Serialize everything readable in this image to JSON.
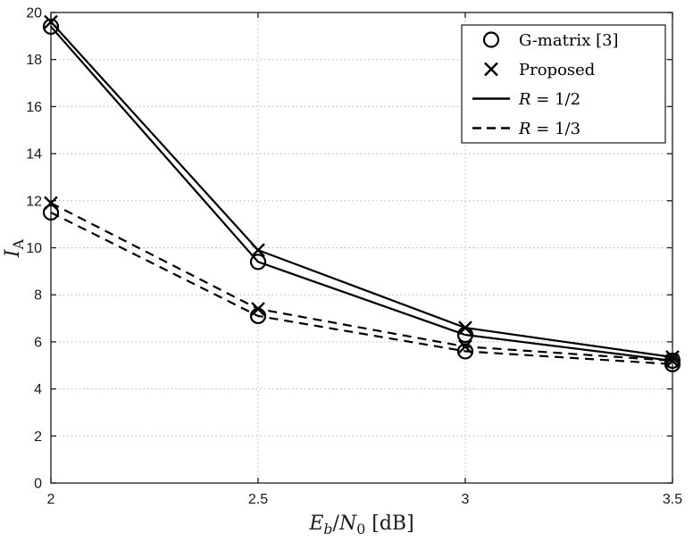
{
  "chart_data": {
    "type": "line",
    "x": [
      2,
      2.5,
      3,
      3.5
    ],
    "series": [
      {
        "id": "g-matrix-r12",
        "name": "G-matrix [3], R = 1/2",
        "marker": "circle",
        "line": "solid",
        "values": [
          19.4,
          9.4,
          6.3,
          5.2
        ]
      },
      {
        "id": "proposed-r12",
        "name": "Proposed, R = 1/2",
        "marker": "x",
        "line": "solid",
        "values": [
          19.6,
          9.9,
          6.6,
          5.35
        ]
      },
      {
        "id": "g-matrix-r13",
        "name": "G-matrix [3], R = 1/3",
        "marker": "circle",
        "line": "dashed",
        "values": [
          11.5,
          7.1,
          5.6,
          5.05
        ]
      },
      {
        "id": "proposed-r13",
        "name": "Proposed, R = 1/3",
        "marker": "x",
        "line": "dashed",
        "values": [
          11.9,
          7.4,
          5.8,
          5.2
        ]
      }
    ],
    "xlabel": "E_b/N_0 [dB]",
    "ylabel": "I_A",
    "xlim": [
      2,
      3.5
    ],
    "ylim": [
      0,
      20
    ],
    "xticks": [
      2,
      2.5,
      3,
      3.5
    ],
    "xtick_labels": [
      "2",
      "2.5",
      "3",
      "3.5"
    ],
    "yticks": [
      0,
      2,
      4,
      6,
      8,
      10,
      12,
      14,
      16,
      18,
      20
    ],
    "ytick_labels": [
      "0",
      "2",
      "4",
      "6",
      "8",
      "10",
      "12",
      "14",
      "16",
      "18",
      "20"
    ],
    "grid": true,
    "legend": {
      "position": "top-right",
      "items": [
        {
          "symbol": "circle",
          "label": "G-matrix [3]",
          "parts": [
            {
              "text": "G-matrix [3]",
              "italic": false
            }
          ]
        },
        {
          "symbol": "x",
          "label": "Proposed",
          "parts": [
            {
              "text": "Proposed",
              "italic": false
            }
          ]
        },
        {
          "symbol": "solid-line",
          "label": "R = 1/2",
          "parts": [
            {
              "text": "R",
              "italic": true
            },
            {
              "text": " = 1/2",
              "italic": false
            }
          ]
        },
        {
          "symbol": "dashed-line",
          "label": "R = 1/3",
          "parts": [
            {
              "text": "R",
              "italic": true
            },
            {
              "text": " = 1/3",
              "italic": false
            }
          ]
        }
      ]
    },
    "colors": {
      "line": "#000000",
      "grid": "#b5b5b5",
      "axis": "#1a1a1a"
    }
  },
  "labels": {
    "ylabel_base": "I",
    "ylabel_sub": "A",
    "xlabel_e": "E",
    "xlabel_b": "b",
    "xlabel_slash": "/",
    "xlabel_n": "N",
    "xlabel_zero": "0",
    "xlabel_unit": " [dB]"
  }
}
